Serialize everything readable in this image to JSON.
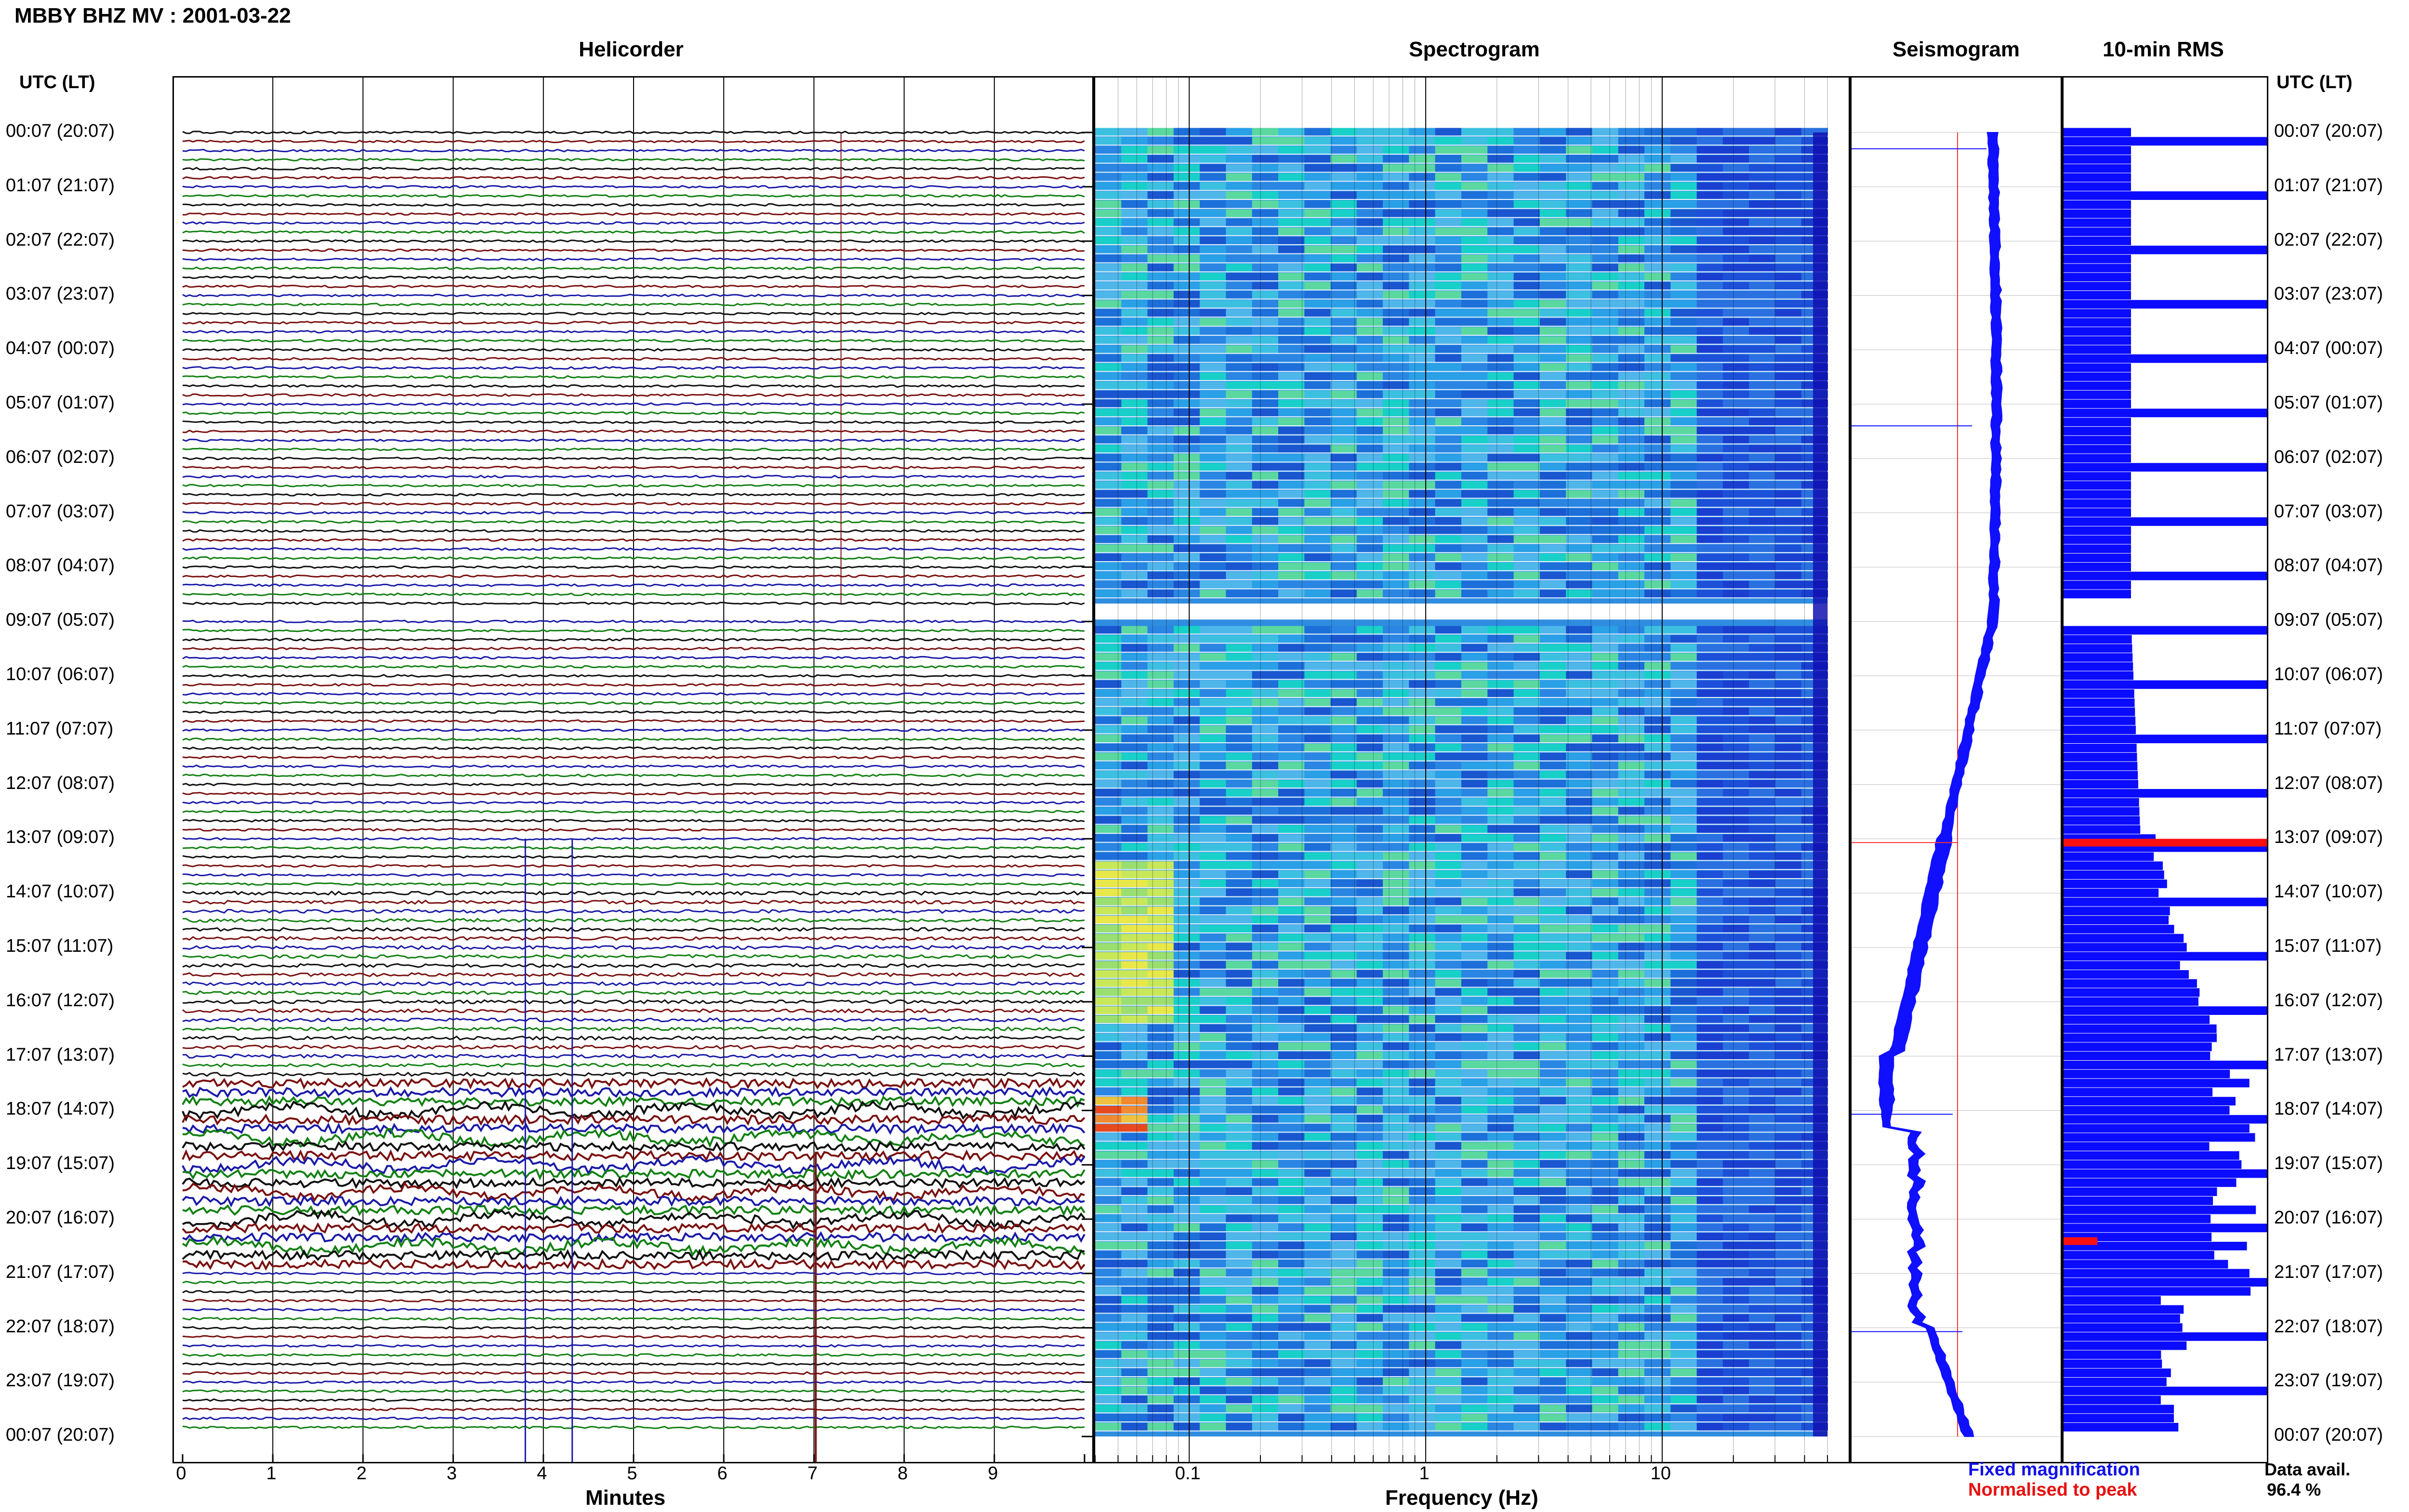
{
  "page_title": "MBBY BHZ MV : 2001-03-22",
  "headers": {
    "helicorder": "Helicorder",
    "spectrogram": "Spectrogram",
    "seismogram": "Seismogram",
    "rms": "10-min RMS"
  },
  "axis_titles": {
    "time_left": "UTC (LT)",
    "time_right": "UTC (LT)",
    "minutes": "Minutes",
    "frequency": "Frequency (Hz)"
  },
  "legend": {
    "fixed": "Fixed magnification",
    "normalised": "Normalised to peak",
    "avail_label": "Data avail.",
    "avail_value": "96.4 %"
  },
  "colors": {
    "black": "#000000",
    "trace_black": "#101010",
    "trace_red": "#7a1010",
    "trace_blue": "#1a1aa8",
    "trace_green": "#128012",
    "seis_blue": "#1010ff",
    "seis_red": "#ff3030",
    "rms_blue": "#0b0bff",
    "rms_red": "#ff1010",
    "spec_bg": "#2f8de0"
  },
  "chart_data": [
    {
      "type": "line",
      "name": "helicorder",
      "xlabel": "Minutes",
      "xlim": [
        0,
        10
      ],
      "xticks": [
        "0",
        "1",
        "2",
        "3",
        "4",
        "5",
        "6",
        "7",
        "8",
        "9"
      ],
      "trace_colors": [
        "black",
        "red",
        "blue",
        "green"
      ],
      "data_gap": [
        "08:47",
        "09:07"
      ]
    },
    {
      "type": "heatmap",
      "name": "spectrogram",
      "xlabel": "Frequency (Hz)",
      "x_scale": "log",
      "xlim": [
        0.04,
        50
      ],
      "xticks": [
        "0.1",
        "1",
        "10"
      ]
    },
    {
      "type": "line",
      "name": "seismogram",
      "series": [
        "Fixed magnification",
        "Normalised to peak"
      ]
    },
    {
      "type": "bar",
      "name": "10-min RMS",
      "orientation": "horizontal",
      "normalised_peaks": [
        "13:07",
        "20:27"
      ]
    }
  ],
  "time_axis": {
    "labels": [
      "00:07 (20:07)",
      "01:07 (21:07)",
      "02:07 (22:07)",
      "03:07 (23:07)",
      "04:07 (00:07)",
      "05:07 (01:07)",
      "06:07 (02:07)",
      "07:07 (03:07)",
      "08:07 (04:07)",
      "09:07 (05:07)",
      "10:07 (06:07)",
      "11:07 (07:07)",
      "12:07 (08:07)",
      "13:07 (09:07)",
      "14:07 (10:07)",
      "15:07 (11:07)",
      "16:07 (12:07)",
      "17:07 (13:07)",
      "18:07 (14:07)",
      "19:07 (15:07)",
      "20:07 (16:07)",
      "21:07 (17:07)",
      "22:07 (18:07)",
      "23:07 (19:07)",
      "00:07 (20:07)"
    ]
  }
}
